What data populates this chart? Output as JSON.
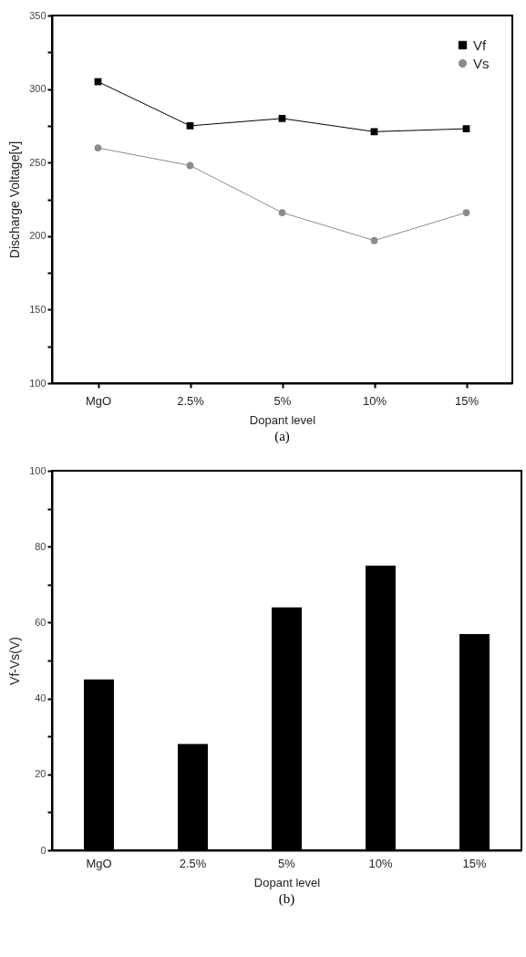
{
  "chart_data": [
    {
      "type": "line",
      "xlabel": "Dopant level",
      "ylabel": "Discharge Voltage[v]",
      "annotations": [
        "(a)"
      ],
      "categories": [
        "MgO",
        "2.5%",
        "5%",
        "10%",
        "15%"
      ],
      "series": [
        {
          "name": "Vf",
          "color": "#000000",
          "marker": "square",
          "values": [
            305,
            275,
            280,
            271,
            273
          ]
        },
        {
          "name": "Vs",
          "color": "#8c8c8c",
          "marker": "circle",
          "values": [
            260,
            248,
            216,
            197,
            216
          ]
        }
      ],
      "ylim": [
        100,
        350
      ],
      "yticks": [
        100,
        {
          "value": 125,
          "label": null
        },
        150,
        {
          "value": 175,
          "label": null
        },
        200,
        {
          "value": 225,
          "label": null
        },
        250,
        {
          "value": 275,
          "label": null
        },
        300,
        {
          "value": 325,
          "label": null
        },
        350
      ],
      "legend": "top right",
      "grid": false
    },
    {
      "type": "bar",
      "xlabel": "Dopant level",
      "ylabel": "Vf-Vs(V)",
      "annotations": [
        "(b)"
      ],
      "categories": [
        "MgO",
        "2.5%",
        "5%",
        "10%",
        "15%"
      ],
      "values": [
        45,
        28,
        64,
        75,
        57
      ],
      "color": "#000000",
      "ylim": [
        0,
        100
      ],
      "yticks": [
        0,
        {
          "value": 10,
          "label": null
        },
        20,
        {
          "value": 30,
          "label": null
        },
        40,
        {
          "value": 50,
          "label": null
        },
        60,
        {
          "value": 70,
          "label": null
        },
        80,
        {
          "value": 90,
          "label": null
        },
        100
      ],
      "grid": false
    }
  ]
}
